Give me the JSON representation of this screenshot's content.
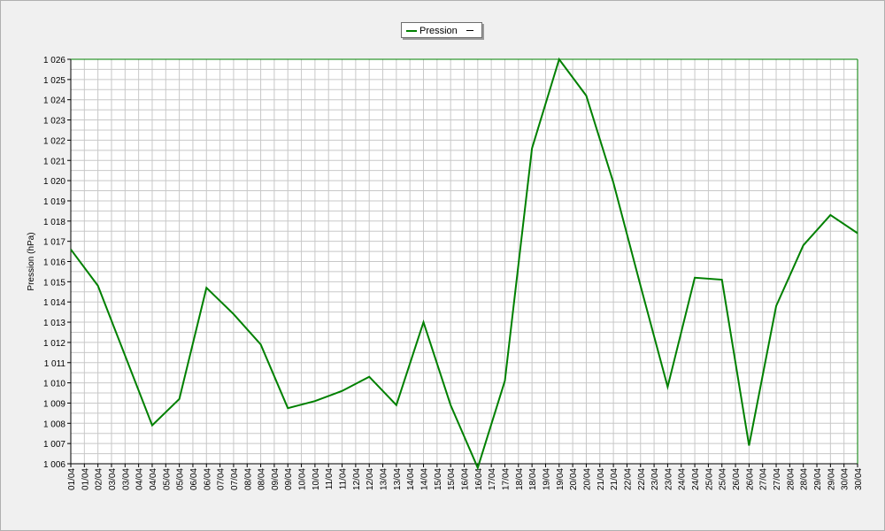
{
  "chart_data": {
    "type": "line",
    "title": "",
    "xlabel": "",
    "ylabel": "Pression (hPa)",
    "ylim": [
      1006,
      1026
    ],
    "y_ticks": [
      1006,
      1007,
      1008,
      1009,
      1010,
      1011,
      1012,
      1013,
      1014,
      1015,
      1016,
      1017,
      1018,
      1019,
      1020,
      1021,
      1022,
      1023,
      1024,
      1025,
      1026
    ],
    "y_tick_labels": [
      "1 006",
      "1 007",
      "1 008",
      "1 009",
      "1 010",
      "1 011",
      "1 012",
      "1 013",
      "1 014",
      "1 015",
      "1 016",
      "1 017",
      "1 018",
      "1 019",
      "1 020",
      "1 021",
      "1 022",
      "1 023",
      "1 024",
      "1 025",
      "1 026"
    ],
    "categories": [
      "01/04",
      "01/04",
      "02/04",
      "03/04",
      "03/04",
      "04/04",
      "04/04",
      "05/04",
      "05/04",
      "06/04",
      "06/04",
      "07/04",
      "07/04",
      "08/04",
      "08/04",
      "09/04",
      "09/04",
      "10/04",
      "10/04",
      "11/04",
      "11/04",
      "12/04",
      "12/04",
      "13/04",
      "13/04",
      "14/04",
      "14/04",
      "15/04",
      "15/04",
      "16/04",
      "16/04",
      "17/04",
      "17/04",
      "18/04",
      "18/04",
      "19/04",
      "19/04",
      "20/04",
      "20/04",
      "21/04",
      "21/04",
      "22/04",
      "22/04",
      "23/04",
      "23/04",
      "24/04",
      "24/04",
      "25/04",
      "25/04",
      "26/04",
      "26/04",
      "27/04",
      "27/04",
      "28/04",
      "28/04",
      "29/04",
      "29/04",
      "30/04",
      "30/04"
    ],
    "grid": true,
    "legend_position": "top-center",
    "series": [
      {
        "name": "Pression",
        "color": "#008000",
        "points": [
          {
            "x": 0,
            "y": 1016.6
          },
          {
            "x": 2,
            "y": 1014.8
          },
          {
            "x": 6,
            "y": 1007.9
          },
          {
            "x": 8,
            "y": 1009.2
          },
          {
            "x": 10,
            "y": 1014.7
          },
          {
            "x": 12,
            "y": 1013.4
          },
          {
            "x": 14,
            "y": 1011.9
          },
          {
            "x": 16,
            "y": 1008.75
          },
          {
            "x": 18,
            "y": 1009.1
          },
          {
            "x": 20,
            "y": 1009.6
          },
          {
            "x": 22,
            "y": 1010.3
          },
          {
            "x": 24,
            "y": 1008.9
          },
          {
            "x": 26,
            "y": 1013.0
          },
          {
            "x": 28,
            "y": 1008.9
          },
          {
            "x": 30,
            "y": 1005.8
          },
          {
            "x": 32,
            "y": 1010.1
          },
          {
            "x": 34,
            "y": 1021.6
          },
          {
            "x": 36,
            "y": 1026.0
          },
          {
            "x": 38,
            "y": 1024.2
          },
          {
            "x": 40,
            "y": 1019.9
          },
          {
            "x": 42,
            "y": 1014.8
          },
          {
            "x": 44,
            "y": 1009.8
          },
          {
            "x": 46,
            "y": 1015.2
          },
          {
            "x": 48,
            "y": 1015.1
          },
          {
            "x": 50,
            "y": 1006.9
          },
          {
            "x": 52,
            "y": 1013.8
          },
          {
            "x": 54,
            "y": 1016.8
          },
          {
            "x": 56,
            "y": 1018.3
          },
          {
            "x": 58,
            "y": 1017.4
          }
        ]
      }
    ]
  },
  "legend": {
    "label": "Pression"
  }
}
